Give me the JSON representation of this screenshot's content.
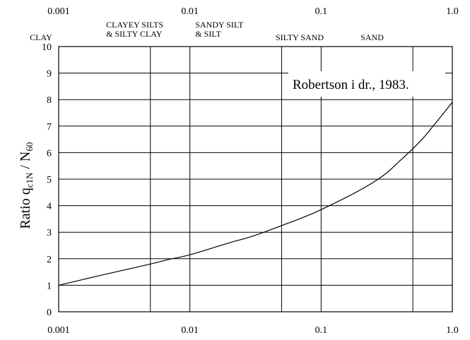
{
  "chart_data": {
    "type": "line",
    "title": "",
    "xscale": "log",
    "xlim": [
      0.001,
      1.0
    ],
    "ylim": [
      0,
      10
    ],
    "yticks": [
      "0",
      "1",
      "2",
      "3",
      "4",
      "5",
      "6",
      "7",
      "8",
      "9",
      "10"
    ],
    "xticks_bottom": [
      {
        "value": 0.001,
        "label": "0.001"
      },
      {
        "value": 0.01,
        "label": "0.01"
      },
      {
        "value": 0.1,
        "label": "0.1"
      },
      {
        "value": 1.0,
        "label": "1.0"
      }
    ],
    "xticks_top": [
      {
        "value": 0.001,
        "label": "0.001"
      },
      {
        "value": 0.01,
        "label": "0.01"
      },
      {
        "value": 0.1,
        "label": "0.1"
      },
      {
        "value": 1.0,
        "label": "1.0"
      }
    ],
    "ylabel": {
      "prefix": "Ratio q",
      "sub1": "c1N",
      "mid": " / N",
      "sub2": "60"
    },
    "annotation": "Robertson i dr., 1983.",
    "soil_zone_boundaries": [
      0.005,
      0.01,
      0.05,
      0.1,
      0.5
    ],
    "soil_labels": [
      {
        "lines": [
          "CLAY"
        ],
        "x": 0.001
      },
      {
        "lines": [
          "CLAYEY SILTS",
          "& SILTY CLAY"
        ],
        "x": 0.0023
      },
      {
        "lines": [
          "SANDY SILT",
          "& SILT"
        ],
        "x": 0.011
      },
      {
        "lines": [
          "SILTY SAND"
        ],
        "x": 0.045
      },
      {
        "lines": [
          "SAND"
        ],
        "x": 0.2
      }
    ],
    "grid": true,
    "series": [
      {
        "x": [
          0.001,
          0.002,
          0.003,
          0.005,
          0.007,
          0.01,
          0.02,
          0.03,
          0.05,
          0.07,
          0.1,
          0.2,
          0.3,
          0.4,
          0.5,
          0.6,
          0.7,
          0.8,
          1.0
        ],
        "y": [
          1.0,
          1.35,
          1.55,
          1.8,
          1.98,
          2.15,
          2.6,
          2.85,
          3.25,
          3.52,
          3.85,
          4.6,
          5.15,
          5.7,
          6.15,
          6.55,
          6.95,
          7.3,
          7.9
        ]
      }
    ]
  }
}
